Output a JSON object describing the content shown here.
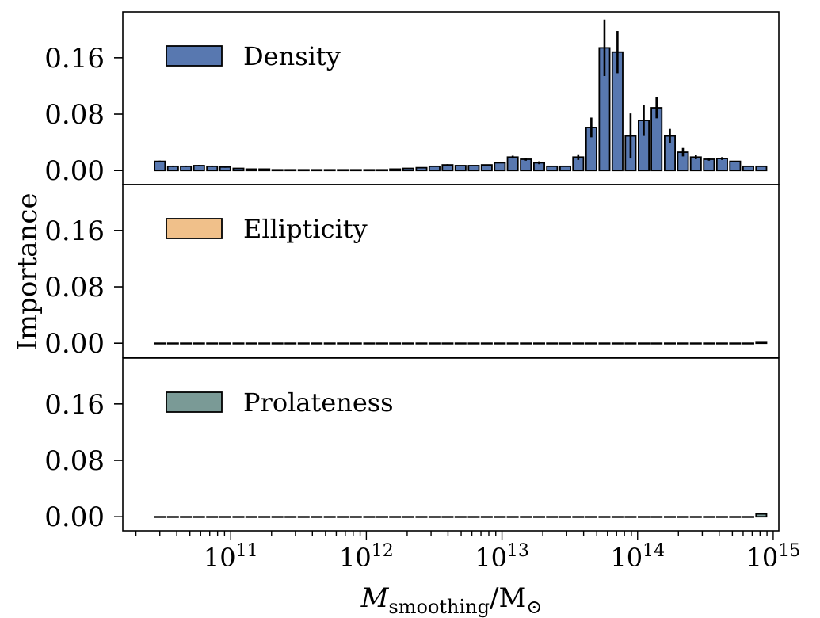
{
  "chart_data": {
    "type": "bar",
    "xlabel": "M_smoothing / M_⊙",
    "xlabel_main": "M",
    "xlabel_sub": "smoothing",
    "xlabel_rest": "/M",
    "xlabel_sun": "⊙",
    "ylabel": "Importance",
    "x_scale": "log",
    "xlim": [
      16000000000.0,
      1100000000000000.0
    ],
    "ylim": [
      -0.02,
      0.225
    ],
    "yticks": [
      0.0,
      0.08,
      0.16
    ],
    "ytick_labels": [
      "0.00",
      "0.08",
      "0.16"
    ],
    "xtick_exponents": [
      "11",
      "12",
      "13",
      "14",
      "15"
    ],
    "xtick_base": "10",
    "x": [
      30000000000.0,
      37500000000.0,
      46700000000.0,
      58400000000.0,
      72900000000.0,
      91000000000.0,
      114000000000.0,
      142000000000.0,
      177000000000.0,
      221000000000.0,
      276000000000.0,
      345000000000.0,
      430000000000.0,
      537000000000.0,
      671000000000.0,
      838000000000.0,
      1050000000000.0,
      1310000000000.0,
      1630000000000.0,
      2040000000000.0,
      2550000000000.0,
      3180000000000.0,
      3970000000000.0,
      4950000000000.0,
      6190000000000.0,
      7720000000000.0,
      9640000000000.0,
      12000000000000.0,
      15000000000000.0,
      18800000000000.0,
      23400000000000.0,
      29300000000000.0,
      36500000000000.0,
      45600000000000.0,
      57000000000000.0,
      71100000000000.0,
      88800000000000.0,
      111000000000000.0,
      138000000000000.0,
      173000000000000.0,
      216000000000000.0,
      269000000000000.0,
      336000000000000.0,
      420000000000000.0,
      524000000000000.0,
      655000000000000.0,
      817000000000000.0
    ],
    "series": [
      {
        "name": "Density",
        "color": "#5878b0",
        "values": [
          0.013,
          0.006,
          0.006,
          0.007,
          0.006,
          0.005,
          0.003,
          0.002,
          0.002,
          0.001,
          0.001,
          0.001,
          0.001,
          0.001,
          0.001,
          0.001,
          0.001,
          0.001,
          0.002,
          0.003,
          0.004,
          0.006,
          0.008,
          0.007,
          0.007,
          0.008,
          0.011,
          0.019,
          0.016,
          0.011,
          0.006,
          0.006,
          0.019,
          0.061,
          0.174,
          0.168,
          0.049,
          0.071,
          0.089,
          0.049,
          0.026,
          0.019,
          0.016,
          0.017,
          0.013,
          0.006,
          0.006
        ],
        "errors": [
          0.001,
          0.001,
          0.001,
          0.001,
          0.001,
          0.001,
          0.0,
          0.0,
          0.0,
          0.0,
          0.0,
          0.0,
          0.0,
          0.0,
          0.0,
          0.0,
          0.0,
          0.0,
          0.0,
          0.0,
          0.0,
          0.0,
          0.001,
          0.0,
          0.0,
          0.0,
          0.0,
          0.002,
          0.002,
          0.002,
          0.0,
          0.0,
          0.004,
          0.014,
          0.04,
          0.03,
          0.032,
          0.022,
          0.015,
          0.01,
          0.006,
          0.003,
          0.002,
          0.002,
          0.0,
          0.0,
          0.0
        ]
      },
      {
        "name": "Ellipticity",
        "color": "#f0c08a",
        "values": [
          0.0,
          0.0,
          0.0,
          0.0,
          0.0,
          0.0,
          0.0,
          0.0,
          0.0,
          0.0,
          0.0,
          0.0,
          0.0,
          0.0,
          0.0,
          0.0,
          0.0,
          0.0,
          0.0,
          0.0,
          0.0,
          0.0,
          0.0,
          0.0,
          0.0,
          0.0,
          0.0,
          0.0,
          0.0,
          0.0,
          0.0,
          0.0,
          0.0,
          0.0,
          0.0,
          0.0,
          0.0,
          0.0,
          0.0,
          0.0,
          0.0,
          0.0,
          0.0,
          0.0,
          0.0,
          0.0,
          0.001
        ],
        "errors": []
      },
      {
        "name": "Prolateness",
        "color": "#7a9a96",
        "values": [
          0.0,
          0.0,
          0.0,
          0.0,
          0.0,
          0.0,
          0.0,
          0.0,
          0.0,
          0.0,
          0.0,
          0.0,
          0.0,
          0.0,
          0.0,
          0.0,
          0.0,
          0.0,
          0.0,
          0.0,
          0.0,
          0.0,
          0.0,
          0.0,
          0.0,
          0.0,
          0.0,
          0.0,
          0.0,
          0.0,
          0.0,
          0.0,
          0.0,
          0.0,
          0.0,
          0.0,
          0.0,
          0.0,
          0.0,
          0.0,
          0.0,
          0.0,
          0.0,
          0.0,
          0.0,
          0.0,
          0.004
        ],
        "errors": []
      }
    ],
    "legend_position": "upper-left in each panel",
    "grid": false
  }
}
